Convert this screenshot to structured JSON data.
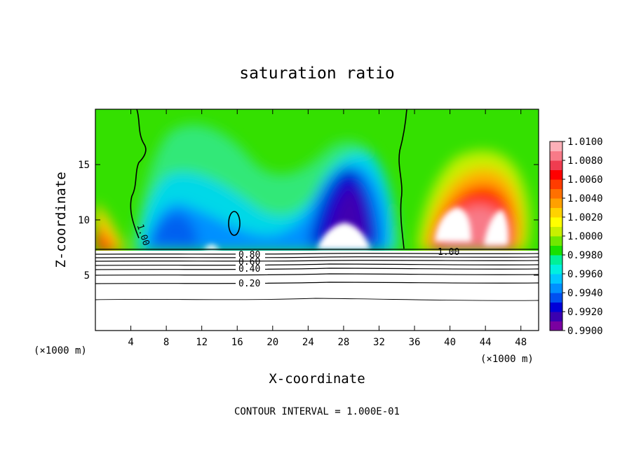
{
  "chart_data": {
    "type": "heatmap",
    "title": "saturation ratio",
    "xlabel": "X-coordinate",
    "ylabel": "Z-coordinate",
    "x_unit_left": "(×1000 m)",
    "x_unit_right": "(×1000 m)",
    "footer": "CONTOUR INTERVAL = 1.000E-01",
    "xlim": [
      0,
      50
    ],
    "ylim": [
      0,
      20
    ],
    "x_ticks": [
      4,
      8,
      12,
      16,
      20,
      24,
      28,
      32,
      36,
      40,
      44,
      48
    ],
    "x_tick_labels": [
      "4",
      "8",
      "12",
      "16",
      "20",
      "24",
      "28",
      "32",
      "36",
      "40",
      "44",
      "48"
    ],
    "y_ticks": [
      5,
      10,
      15
    ],
    "y_tick_labels": [
      "5",
      "10",
      "15"
    ],
    "colorbar": {
      "min": 0.99,
      "max": 1.01,
      "labels": [
        "1.0100",
        "1.0080",
        "1.0060",
        "1.0040",
        "1.0020",
        "1.0000",
        "0.9980",
        "0.9960",
        "0.9940",
        "0.9920",
        "0.9900"
      ],
      "colors": [
        "#7a00a0",
        "#3a00b0",
        "#0000d8",
        "#0050f0",
        "#0090ff",
        "#00c8ff",
        "#00f0e0",
        "#00f098",
        "#18e000",
        "#70e800",
        "#c8f000",
        "#ffff00",
        "#ffd200",
        "#ffa000",
        "#ff7000",
        "#ff3c00",
        "#ff0000",
        "#f03c50",
        "#f87a88",
        "#fcb0b8"
      ]
    },
    "contour_labels": [
      "1.00",
      "1.00",
      "0.80",
      "0.60",
      "0.40",
      "0.20"
    ],
    "contour_values": [
      1.0,
      0.9,
      0.8,
      0.7,
      0.6,
      0.5,
      0.4,
      0.3,
      0.2,
      0.1
    ]
  }
}
